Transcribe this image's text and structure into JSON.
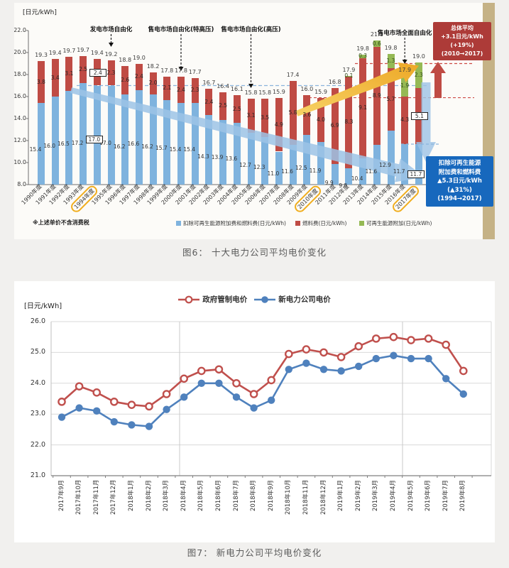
{
  "captions": {
    "fig6": "图6： 十大电力公司平均电价变化",
    "fig7": "图7： 新电力公司平均电价变化"
  },
  "chart_data": [
    {
      "type": "bar",
      "stacked": true,
      "title": "十大电力公司平均电价变化",
      "unit_label": "[日元/kWh]",
      "ylim": [
        8.0,
        22.0
      ],
      "ytick_step": 2.0,
      "yticks": [
        "22.0",
        "20.0",
        "18.0",
        "16.0",
        "14.0",
        "12.0",
        "10.0",
        "8.0"
      ],
      "categories": [
        "1990年度",
        "1991年度",
        "1992年度",
        "1993年度",
        "1994年度",
        "1995年度",
        "1996年度",
        "1997年度",
        "1998年度",
        "1999年度",
        "2000年度",
        "2001年度",
        "2002年度",
        "2003年度",
        "2004年度",
        "2005年度",
        "2006年度",
        "2007年度",
        "2008年度",
        "2009年度",
        "2010年度",
        "2011年度",
        "2012年度",
        "2013年度",
        "2014年度",
        "2015年度",
        "2016年度",
        "2017年度"
      ],
      "series": [
        {
          "name": "扣除可再生能源附加费和燃料费(日元/kWh)",
          "color": "#7fb3de",
          "values": [
            15.4,
            16.0,
            16.5,
            17.2,
            17.0,
            17.0,
            16.2,
            16.6,
            16.2,
            15.7,
            15.4,
            15.4,
            14.3,
            13.9,
            13.6,
            12.7,
            12.3,
            11.0,
            11.6,
            12.5,
            11.9,
            9.9,
            9.5,
            10.4,
            11.6,
            12.9,
            11.7,
            11.7
          ]
        },
        {
          "name": "燃料费(日元/kWh)",
          "color": "#bf4b44",
          "values": [
            3.8,
            3.4,
            3.1,
            2.5,
            2.4,
            2.3,
            2.6,
            2.4,
            2.0,
            2.1,
            2.4,
            2.3,
            2.4,
            2.5,
            2.5,
            3.1,
            3.5,
            4.9,
            5.8,
            3.6,
            4.0,
            6.9,
            8.3,
            9.1,
            8.9,
            5.7,
            4.3,
            5.1
          ]
        },
        {
          "name": "可再生能源附加(日元/kWh)",
          "color": "#95b954",
          "values": [
            0,
            0,
            0,
            0,
            0,
            0,
            0,
            0,
            0,
            0,
            0,
            0,
            0,
            0,
            0,
            0,
            0,
            0,
            0,
            0,
            0,
            0,
            0.1,
            0.3,
            0.6,
            1.3,
            1.9,
            2.3
          ]
        }
      ],
      "totals": [
        "19.3",
        "19.4",
        "19.7",
        "19.7",
        "19.4",
        "19.2",
        "18.8",
        "19.0",
        "18.2",
        "17.8",
        "17.8",
        "17.7",
        "16.7",
        "16.4",
        "16.1",
        "15.8",
        "15.8",
        "15.9",
        "17.4",
        "16.0",
        "15.9",
        "16.8",
        "17.9",
        "19.8",
        "21.1",
        "19.8",
        "17.9",
        "19.0"
      ],
      "highlighted_years": [
        "1994年度",
        "2010年度",
        "2017年度"
      ],
      "boxed_value_years": [
        "1994年度",
        "2017年度"
      ],
      "events": [
        {
          "label": "发电市场自由化",
          "year": "1995年度"
        },
        {
          "label": "售电市场自由化(特高压)",
          "year": "2000年度"
        },
        {
          "label": "售电市场自由化(高压)",
          "year": "2005年度"
        },
        {
          "label": "售电市场全面自由化",
          "year": "2016年度"
        }
      ],
      "overall_average_box": {
        "lines": [
          "总体平均",
          "+3.1日元/kWh",
          "(+19%)",
          "(2010→2017)"
        ],
        "color": "#ad3b38"
      },
      "deduction_box": {
        "lines": [
          "扣除可再生能源",
          "附加费和燃料费",
          "▲5.3日元/kWh",
          "(▲31%)",
          "(1994→2017)"
        ],
        "color": "#1768bd"
      },
      "footnote": "※上述单价不含消费税",
      "legend_position": "bottom"
    },
    {
      "type": "line",
      "title": "新电力公司平均电价变化",
      "unit_label": "[日元/kWh]",
      "ylim": [
        21.0,
        26.0
      ],
      "ytick_step": 1.0,
      "yticks": [
        "26.0",
        "25.0",
        "24.0",
        "23.0",
        "22.0",
        "21.0"
      ],
      "categories": [
        "2017年9月",
        "2017年10月",
        "2017年11月",
        "2017年12月",
        "2018年1月",
        "2018年2月",
        "2018年3月",
        "2018年4月",
        "2018年5月",
        "2018年6月",
        "2018年7月",
        "2018年8月",
        "2018年9月",
        "2018年10月",
        "2018年11月",
        "2018年12月",
        "2019年1月",
        "2019年2月",
        "2019年3月",
        "2019年4月",
        "2019年5月",
        "2019年6月",
        "2019年7月",
        "2019年8月"
      ],
      "series": [
        {
          "name": "政府管制电价",
          "color": "#c0504d",
          "marker": "open-circle",
          "values": [
            23.4,
            23.9,
            23.7,
            23.4,
            23.3,
            23.25,
            23.65,
            24.15,
            24.4,
            24.45,
            24.0,
            23.65,
            24.1,
            24.95,
            25.1,
            25.0,
            24.85,
            25.2,
            25.45,
            25.5,
            25.4,
            25.45,
            25.25,
            24.4
          ]
        },
        {
          "name": "新电力公司电价",
          "color": "#4f81bd",
          "marker": "filled-circle",
          "values": [
            22.9,
            23.2,
            23.1,
            22.75,
            22.65,
            22.6,
            23.15,
            23.55,
            24.0,
            24.0,
            23.55,
            23.2,
            23.45,
            24.45,
            24.65,
            24.45,
            24.4,
            24.55,
            24.8,
            24.9,
            24.8,
            24.8,
            24.15,
            23.65
          ]
        }
      ],
      "legend_position": "top",
      "grid": "horizontal"
    }
  ]
}
